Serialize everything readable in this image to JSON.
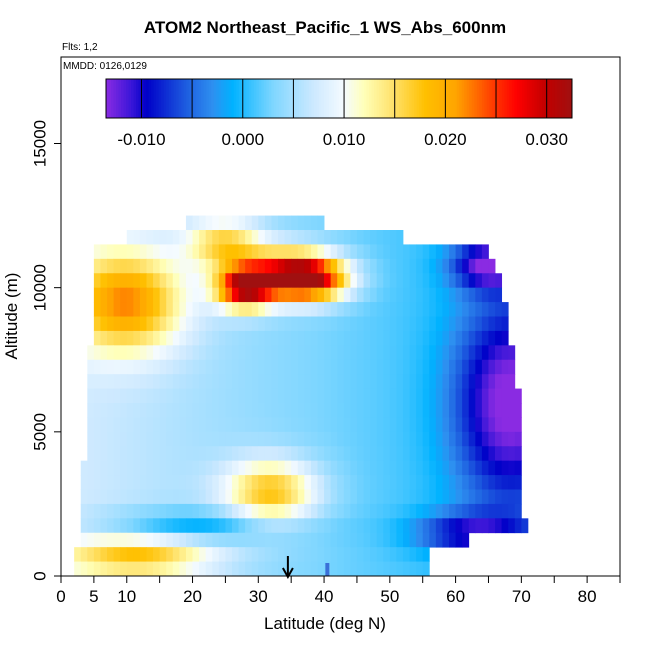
{
  "chart_data": {
    "type": "heatmap",
    "title": "ATOM2 Northeast_Pacific_1 WS_Abs_600nm",
    "subtitle_flights": "Flts: 1,2",
    "subtitle_dates": "MMDD: 0126,0129",
    "xlabel": "Latitude (deg N)",
    "ylabel": "Altitude (m)",
    "xlim": [
      0,
      85
    ],
    "ylim": [
      0,
      18000
    ],
    "x_ticks": [
      0,
      5,
      10,
      20,
      30,
      40,
      50,
      60,
      70,
      80
    ],
    "x_minor_ticks": [
      15,
      25,
      35,
      45,
      55,
      65,
      75,
      85
    ],
    "y_ticks": [
      0,
      5000,
      10000,
      15000
    ],
    "colorbar": {
      "range": [
        -0.0135,
        0.0325
      ],
      "tick_values": [
        -0.01,
        0.0,
        0.01,
        0.02,
        0.03
      ],
      "tick_labels": [
        "-0.010",
        "0.000",
        "0.010",
        "0.020",
        "0.030"
      ],
      "stops": [
        [
          -0.0135,
          "#8a2be2"
        ],
        [
          -0.011,
          "#3a16d8"
        ],
        [
          -0.0095,
          "#0000c8"
        ],
        [
          -0.0055,
          "#1e5fe0"
        ],
        [
          -0.003,
          "#2e8ff0"
        ],
        [
          -0.001,
          "#00b2ff"
        ],
        [
          0.003,
          "#7fd6ff"
        ],
        [
          0.007,
          "#cde9ff"
        ],
        [
          0.01,
          "#f5fbff"
        ],
        [
          0.012,
          "#ffffb8"
        ],
        [
          0.015,
          "#ffe066"
        ],
        [
          0.018,
          "#ffc000"
        ],
        [
          0.021,
          "#ffa500"
        ],
        [
          0.025,
          "#ff3300"
        ],
        [
          0.027,
          "#ff0000"
        ],
        [
          0.03,
          "#c00000"
        ],
        [
          0.0325,
          "#a01010"
        ]
      ]
    },
    "flight_marker_latitude": 34.5,
    "marker_latitude_2": 40.5,
    "curtain": {
      "altitude_bins": [
        {
          "alt": 12250,
          "lat_min": 19,
          "lat_max": 40
        },
        {
          "alt": 11750,
          "lat_min": 10,
          "lat_max": 52
        },
        {
          "alt": 11250,
          "lat_min": 5,
          "lat_max": 65
        },
        {
          "alt": 10750,
          "lat_min": 5,
          "lat_max": 66
        },
        {
          "alt": 10250,
          "lat_min": 5,
          "lat_max": 67
        },
        {
          "alt": 9750,
          "lat_min": 5,
          "lat_max": 67
        },
        {
          "alt": 9250,
          "lat_min": 5,
          "lat_max": 68
        },
        {
          "alt": 8750,
          "lat_min": 5,
          "lat_max": 68
        },
        {
          "alt": 8250,
          "lat_min": 5,
          "lat_max": 68
        },
        {
          "alt": 7750,
          "lat_min": 4,
          "lat_max": 69
        },
        {
          "alt": 7250,
          "lat_min": 4,
          "lat_max": 69
        },
        {
          "alt": 6750,
          "lat_min": 4,
          "lat_max": 69
        },
        {
          "alt": 6250,
          "lat_min": 4,
          "lat_max": 70
        },
        {
          "alt": 5750,
          "lat_min": 4,
          "lat_max": 70
        },
        {
          "alt": 5250,
          "lat_min": 4,
          "lat_max": 70
        },
        {
          "alt": 4750,
          "lat_min": 4,
          "lat_max": 70
        },
        {
          "alt": 4250,
          "lat_min": 4,
          "lat_max": 70
        },
        {
          "alt": 3750,
          "lat_min": 3,
          "lat_max": 70
        },
        {
          "alt": 3250,
          "lat_min": 3,
          "lat_max": 70
        },
        {
          "alt": 2750,
          "lat_min": 3,
          "lat_max": 70
        },
        {
          "alt": 2250,
          "lat_min": 3,
          "lat_max": 70
        },
        {
          "alt": 1750,
          "lat_min": 3,
          "lat_max": 71
        },
        {
          "alt": 1250,
          "lat_min": 3,
          "lat_max": 62
        },
        {
          "alt": 750,
          "lat_min": 2,
          "lat_max": 56
        },
        {
          "alt": 250,
          "lat_min": 2,
          "lat_max": 56
        }
      ],
      "features": [
        {
          "lat": 28,
          "alt": 10000,
          "value": 0.03,
          "sigma_lat": 3,
          "sigma_alt": 500
        },
        {
          "lat": 35,
          "alt": 10500,
          "value": 0.024,
          "sigma_lat": 5,
          "sigma_alt": 600
        },
        {
          "lat": 38,
          "alt": 10250,
          "value": 0.022,
          "sigma_lat": 4,
          "sigma_alt": 500
        },
        {
          "lat": 10,
          "alt": 9500,
          "value": 0.02,
          "sigma_lat": 6,
          "sigma_alt": 1200
        },
        {
          "lat": 32,
          "alt": 2900,
          "value": 0.018,
          "sigma_lat": 5,
          "sigma_alt": 800
        },
        {
          "lat": 12,
          "alt": 700,
          "value": 0.016,
          "sigma_lat": 8,
          "sigma_alt": 500
        },
        {
          "lat": 25,
          "alt": 11500,
          "value": 0.016,
          "sigma_lat": 4,
          "sigma_alt": 600
        },
        {
          "lat": 68,
          "alt": 6000,
          "value": -0.01,
          "sigma_lat": 6,
          "sigma_alt": 2500
        },
        {
          "lat": 65,
          "alt": 10800,
          "value": -0.009,
          "sigma_lat": 4,
          "sigma_alt": 600
        },
        {
          "lat": 62,
          "alt": 1500,
          "value": -0.006,
          "sigma_lat": 6,
          "sigma_alt": 500
        },
        {
          "lat": 20,
          "alt": 1750,
          "value": -0.003,
          "sigma_lat": 10,
          "sigma_alt": 400
        }
      ],
      "background_value": 0.004
    }
  }
}
